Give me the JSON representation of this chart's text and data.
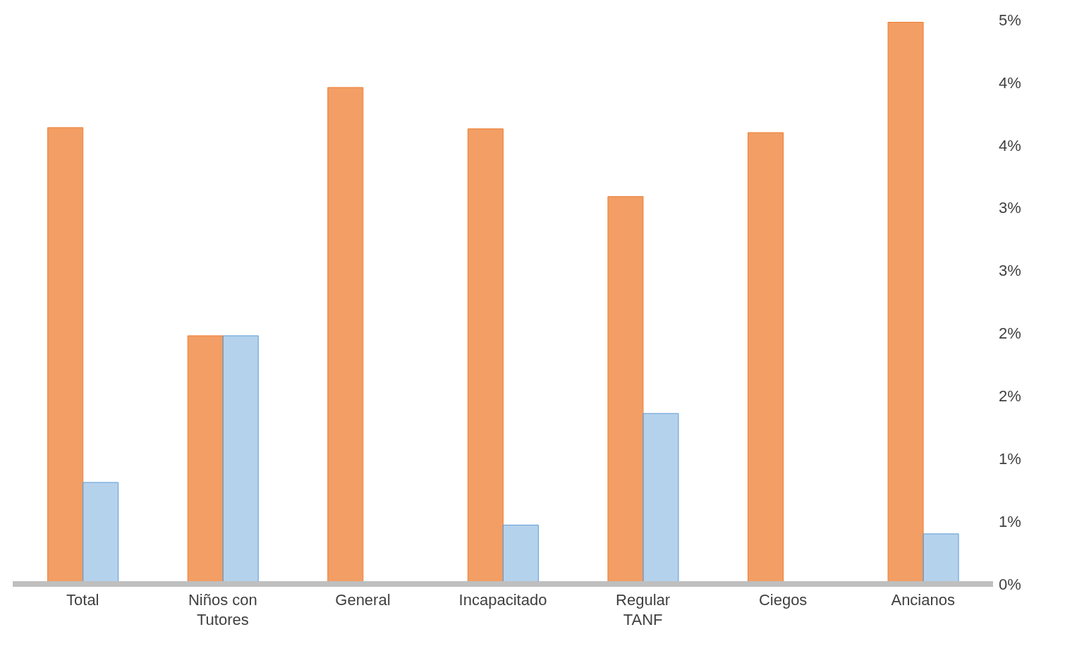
{
  "chart_data": {
    "type": "bar",
    "categories": [
      "Total",
      "Niños con Tutores",
      "General",
      "Incapacitado",
      "Regular TANF",
      "Ciegos",
      "Ancianos"
    ],
    "series": [
      {
        "color": "#ed7d31",
        "values": [
          3.64,
          1.98,
          3.96,
          3.63,
          3.09,
          3.6,
          4.48
        ]
      },
      {
        "color": "#5b9bd5",
        "values": [
          0.81,
          1.98,
          0,
          0.47,
          1.36,
          0,
          0.4
        ]
      }
    ],
    "ylim": [
      0,
      4.5
    ],
    "yticks": [
      {
        "value": 0,
        "label": "0%"
      },
      {
        "value": 0.5,
        "label": "1%"
      },
      {
        "value": 1,
        "label": "1%"
      },
      {
        "value": 1.5,
        "label": "2%"
      },
      {
        "value": 2,
        "label": "2%"
      },
      {
        "value": 2.5,
        "label": "3%"
      },
      {
        "value": 3,
        "label": "3%"
      },
      {
        "value": 3.5,
        "label": "4%"
      },
      {
        "value": 4,
        "label": "4%"
      },
      {
        "value": 4.5,
        "label": "5%"
      }
    ],
    "grid": false,
    "legend": false
  }
}
